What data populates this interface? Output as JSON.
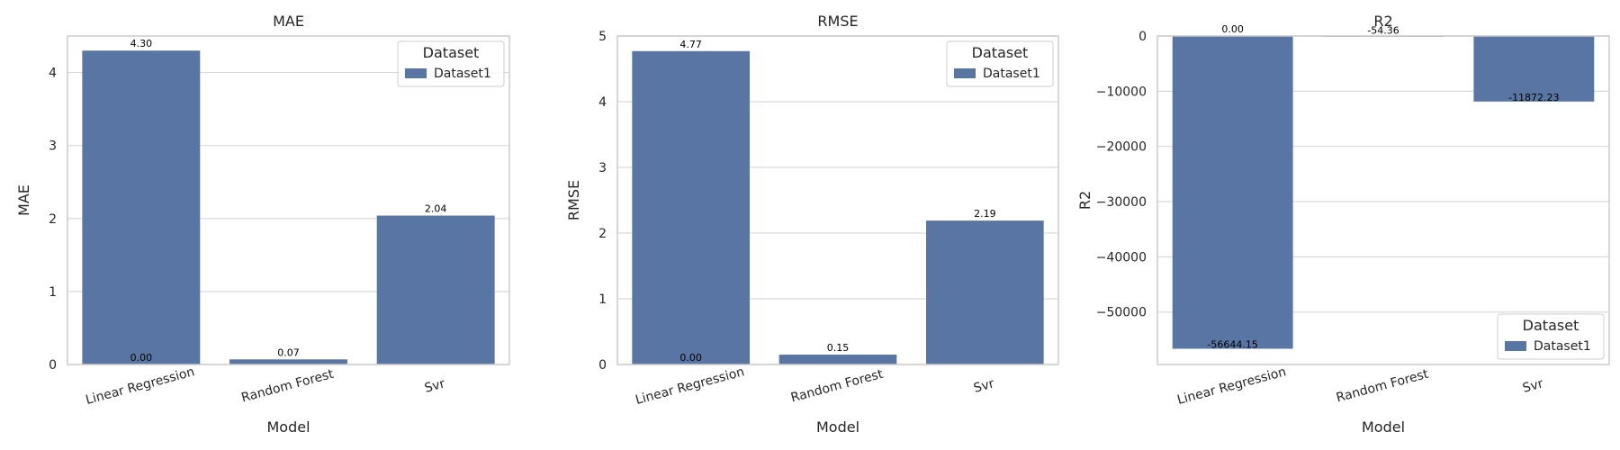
{
  "colors": {
    "bar": "#5975a4",
    "grid": "#d9d9d9",
    "frame": "#cccccc",
    "text": "#262626"
  },
  "chart_data": [
    {
      "type": "bar",
      "title": "MAE",
      "xlabel": "Model",
      "ylabel": "MAE",
      "categories": [
        "Linear Regression",
        "Random Forest",
        "Svr"
      ],
      "series": [
        {
          "name": "Dataset1",
          "values": [
            4.3,
            0.07,
            2.04
          ]
        }
      ],
      "ylim": [
        0,
        4.5
      ],
      "yticks": [
        0,
        1,
        2,
        3,
        4
      ],
      "ytick_labels": [
        "0",
        "1",
        "2",
        "3",
        "4"
      ],
      "bar_labels": [
        "4.30",
        "0.07",
        "2.04"
      ],
      "extra_labels": [
        {
          "category": "Linear Regression",
          "at_value": 0,
          "text": "0.00"
        }
      ],
      "legend": {
        "title": "Dataset",
        "placement": "top-right",
        "entries": [
          "Dataset1"
        ]
      },
      "grid": true
    },
    {
      "type": "bar",
      "title": "RMSE",
      "xlabel": "Model",
      "ylabel": "RMSE",
      "categories": [
        "Linear Regression",
        "Random Forest",
        "Svr"
      ],
      "series": [
        {
          "name": "Dataset1",
          "values": [
            4.77,
            0.15,
            2.19
          ]
        }
      ],
      "ylim": [
        0,
        5
      ],
      "yticks": [
        0,
        1,
        2,
        3,
        4,
        5
      ],
      "ytick_labels": [
        "0",
        "1",
        "2",
        "3",
        "4",
        "5"
      ],
      "bar_labels": [
        "4.77",
        "0.15",
        "2.19"
      ],
      "extra_labels": [
        {
          "category": "Linear Regression",
          "at_value": 0,
          "text": "0.00"
        }
      ],
      "legend": {
        "title": "Dataset",
        "placement": "top-right",
        "entries": [
          "Dataset1"
        ]
      },
      "grid": true
    },
    {
      "type": "bar",
      "title": "R2",
      "xlabel": "Model",
      "ylabel": "R2",
      "categories": [
        "Linear Regression",
        "Random Forest",
        "Svr"
      ],
      "series": [
        {
          "name": "Dataset1",
          "values": [
            -56644.15,
            -54.36,
            -11872.23
          ]
        }
      ],
      "ylim": [
        -59500,
        0
      ],
      "yticks": [
        0,
        -10000,
        -20000,
        -30000,
        -40000,
        -50000
      ],
      "ytick_labels": [
        "0",
        "−10000",
        "−20000",
        "−30000",
        "−40000",
        "−50000"
      ],
      "bar_labels": [
        "-56644.15",
        "-54.36",
        "-11872.23"
      ],
      "extra_labels": [
        {
          "category": "Linear Regression",
          "at_value": 0,
          "text": "0.00"
        }
      ],
      "legend": {
        "title": "Dataset",
        "placement": "lower-right",
        "entries": [
          "Dataset1"
        ]
      },
      "grid": true
    }
  ]
}
